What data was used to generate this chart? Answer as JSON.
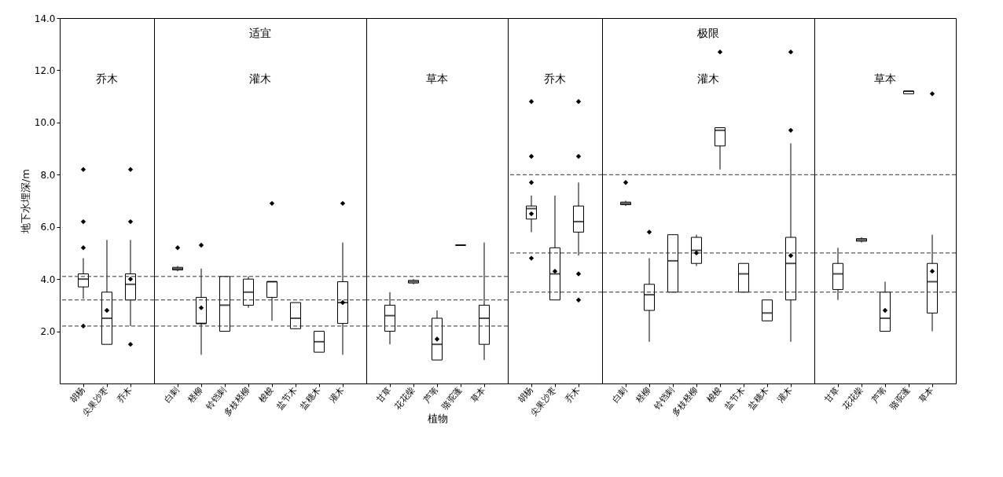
{
  "chart_data": [
    {
      "type": "box",
      "ylabel": "地下水埋深/m",
      "ylim": [
        0,
        14
      ],
      "yticks": [
        {
          "value": 2,
          "label": "2.0"
        },
        {
          "value": 4,
          "label": "4.0"
        },
        {
          "value": 6,
          "label": "6.0"
        },
        {
          "value": 8,
          "label": "8.0"
        },
        {
          "value": 10,
          "label": "10.0"
        },
        {
          "value": 12,
          "label": "12.0"
        },
        {
          "value": 14,
          "label": "14.0"
        }
      ],
      "categories": [
        "胡杨",
        "尖果沙枣",
        "乔木"
      ],
      "boxes": [
        {
          "low": 3.25,
          "q1": 3.7,
          "median": 4.0,
          "q3": 4.2,
          "high": 4.8,
          "outliers": [
            8.2,
            6.2,
            5.2,
            2.2
          ]
        },
        {
          "low": 1.5,
          "q1": 1.5,
          "median": 2.5,
          "q3": 3.5,
          "high": 5.5,
          "mean": 2.8
        },
        {
          "low": 2.2,
          "q1": 3.2,
          "median": 3.8,
          "q3": 4.2,
          "high": 5.5,
          "mean": 4.0,
          "outliers": [
            8.2,
            6.2,
            1.5
          ]
        }
      ],
      "ref_lines": [
        {
          "axis": "y",
          "value": 2.2,
          "line_style": "dashed"
        },
        {
          "axis": "y",
          "value": 3.2,
          "line_style": "dashed"
        },
        {
          "axis": "y",
          "value": 4.1,
          "line_style": "dashed"
        }
      ],
      "annotations": [
        "乔木"
      ]
    },
    {
      "type": "box",
      "ylim": [
        0,
        14
      ],
      "tick_labels": "x",
      "categories": [
        "白刺",
        "柽柳",
        "铃铛刺",
        "多枝柽柳",
        "梭梭",
        "盐节木",
        "盐穗木",
        "灌木"
      ],
      "boxes": [
        {
          "low": 4.3,
          "q1": 4.35,
          "median": 4.4,
          "q3": 4.45,
          "high": 4.5,
          "outliers": [
            5.2
          ]
        },
        {
          "low": 1.1,
          "q1": 2.3,
          "median": 2.3,
          "q3": 3.3,
          "high": 4.4,
          "mean": 2.9,
          "outliers": [
            5.3
          ]
        },
        {
          "low": 2.0,
          "q1": 2.0,
          "median": 3.0,
          "q3": 4.1,
          "high": 4.1
        },
        {
          "low": 2.9,
          "q1": 3.0,
          "median": 3.5,
          "q3": 4.0,
          "high": 4.1
        },
        {
          "low": 2.4,
          "q1": 3.3,
          "median": 3.9,
          "q3": 3.9,
          "high": 3.9,
          "outliers": [
            6.9
          ]
        },
        {
          "low": 2.1,
          "q1": 2.1,
          "median": 2.5,
          "q3": 3.1,
          "high": 3.1
        },
        {
          "low": 1.2,
          "q1": 1.2,
          "median": 1.6,
          "q3": 2.0,
          "high": 2.0
        },
        {
          "low": 1.1,
          "q1": 2.3,
          "median": 3.1,
          "q3": 3.9,
          "high": 5.4,
          "mean": 3.1,
          "outliers": [
            6.9
          ]
        }
      ],
      "ref_lines": [
        {
          "axis": "y",
          "value": 2.2,
          "line_style": "dashed"
        },
        {
          "axis": "y",
          "value": 3.2,
          "line_style": "dashed"
        },
        {
          "axis": "y",
          "value": 4.1,
          "line_style": "dashed"
        }
      ],
      "annotations": [
        "适宜",
        "灌木"
      ]
    },
    {
      "type": "box",
      "ylim": [
        0,
        14
      ],
      "tick_labels": "x",
      "xlabel": "植物",
      "categories": [
        "甘草",
        "花花柴",
        "芦苇",
        "骆驼蓬",
        "草本"
      ],
      "boxes": [
        {
          "low": 1.5,
          "q1": 2.0,
          "median": 2.6,
          "q3": 3.0,
          "high": 3.5
        },
        {
          "low": 3.8,
          "q1": 3.85,
          "median": 3.9,
          "q3": 3.95,
          "high": 4.0
        },
        {
          "low": 0.9,
          "q1": 0.9,
          "median": 1.5,
          "q3": 2.5,
          "high": 2.8,
          "mean": 1.7
        },
        {
          "low": 5.3,
          "q1": 5.3,
          "median": 5.3,
          "q3": 5.3,
          "high": 5.3
        },
        {
          "low": 0.9,
          "q1": 1.5,
          "median": 2.5,
          "q3": 3.0,
          "high": 5.4
        }
      ],
      "ref_lines": [
        {
          "axis": "y",
          "value": 2.2,
          "line_style": "dashed"
        },
        {
          "axis": "y",
          "value": 3.2,
          "line_style": "dashed"
        },
        {
          "axis": "y",
          "value": 4.1,
          "line_style": "dashed"
        }
      ],
      "annotations": [
        "草本"
      ]
    },
    {
      "type": "box",
      "ylim": [
        0,
        14
      ],
      "tick_labels": "x",
      "categories": [
        "胡杨",
        "尖果沙枣",
        "乔木"
      ],
      "boxes": [
        {
          "low": 5.8,
          "q1": 6.3,
          "median": 6.7,
          "q3": 6.8,
          "high": 7.2,
          "mean": 6.5,
          "outliers": [
            10.8,
            8.7,
            7.7,
            4.8
          ]
        },
        {
          "low": 3.2,
          "q1": 3.2,
          "median": 4.2,
          "q3": 5.2,
          "high": 7.2,
          "mean": 4.3
        },
        {
          "low": 4.9,
          "q1": 5.8,
          "median": 6.2,
          "q3": 6.8,
          "high": 7.7,
          "outliers": [
            10.8,
            8.7,
            4.2,
            3.2
          ]
        }
      ],
      "ref_lines": [
        {
          "axis": "y",
          "value": 3.5,
          "line_style": "dashed"
        },
        {
          "axis": "y",
          "value": 5.0,
          "line_style": "dashed"
        },
        {
          "axis": "y",
          "value": 8.0,
          "line_style": "dashed"
        }
      ],
      "annotations": [
        "乔木"
      ]
    },
    {
      "type": "box",
      "ylim": [
        0,
        14
      ],
      "tick_labels": "x",
      "categories": [
        "白刺",
        "柽柳",
        "铃铛刺",
        "多枝柽柳",
        "梭梭",
        "盐节木",
        "盐穗木",
        "灌木"
      ],
      "boxes": [
        {
          "low": 6.8,
          "q1": 6.85,
          "median": 6.9,
          "q3": 6.95,
          "high": 7.0,
          "outliers": [
            7.7
          ]
        },
        {
          "low": 1.6,
          "q1": 2.8,
          "median": 3.4,
          "q3": 3.8,
          "high": 4.8,
          "outliers": [
            5.8
          ]
        },
        {
          "low": 3.5,
          "q1": 3.5,
          "median": 4.7,
          "q3": 5.7,
          "high": 5.7
        },
        {
          "low": 4.5,
          "q1": 4.6,
          "median": 5.1,
          "q3": 5.6,
          "high": 5.7,
          "mean": 5.0
        },
        {
          "low": 8.2,
          "q1": 9.1,
          "median": 9.7,
          "q3": 9.8,
          "high": 9.8,
          "outliers": [
            12.7
          ]
        },
        {
          "low": 3.5,
          "q1": 3.5,
          "median": 4.2,
          "q3": 4.6,
          "high": 4.6
        },
        {
          "low": 2.4,
          "q1": 2.4,
          "median": 2.7,
          "q3": 3.2,
          "high": 3.2
        },
        {
          "low": 1.6,
          "q1": 3.2,
          "median": 4.6,
          "q3": 5.6,
          "high": 9.2,
          "mean": 4.9,
          "outliers": [
            9.7,
            12.7
          ]
        }
      ],
      "ref_lines": [
        {
          "axis": "y",
          "value": 3.5,
          "line_style": "dashed"
        },
        {
          "axis": "y",
          "value": 5.0,
          "line_style": "dashed"
        },
        {
          "axis": "y",
          "value": 8.0,
          "line_style": "dashed"
        }
      ],
      "annotations": [
        "极限",
        "灌木"
      ]
    },
    {
      "type": "box",
      "ylim": [
        0,
        14
      ],
      "tick_labels": "x",
      "categories": [
        "甘草",
        "花花柴",
        "芦苇",
        "骆驼蓬",
        "草本"
      ],
      "boxes": [
        {
          "low": 3.2,
          "q1": 3.6,
          "median": 4.2,
          "q3": 4.6,
          "high": 5.2
        },
        {
          "low": 5.4,
          "q1": 5.45,
          "median": 5.5,
          "q3": 5.55,
          "high": 5.6
        },
        {
          "low": 2.0,
          "q1": 2.0,
          "median": 2.5,
          "q3": 3.5,
          "high": 3.9,
          "mean": 2.8
        },
        {
          "low": 11.1,
          "q1": 11.1,
          "median": 11.2,
          "q3": 11.2,
          "high": 11.2
        },
        {
          "low": 2.0,
          "q1": 2.7,
          "median": 3.9,
          "q3": 4.6,
          "high": 5.7,
          "mean": 4.3,
          "outliers": [
            11.1
          ]
        }
      ],
      "ref_lines": [
        {
          "axis": "y",
          "value": 3.5,
          "line_style": "dashed"
        },
        {
          "axis": "y",
          "value": 5.0,
          "line_style": "dashed"
        },
        {
          "axis": "y",
          "value": 8.0,
          "line_style": "dashed"
        }
      ],
      "annotations": [
        "草本"
      ]
    }
  ]
}
